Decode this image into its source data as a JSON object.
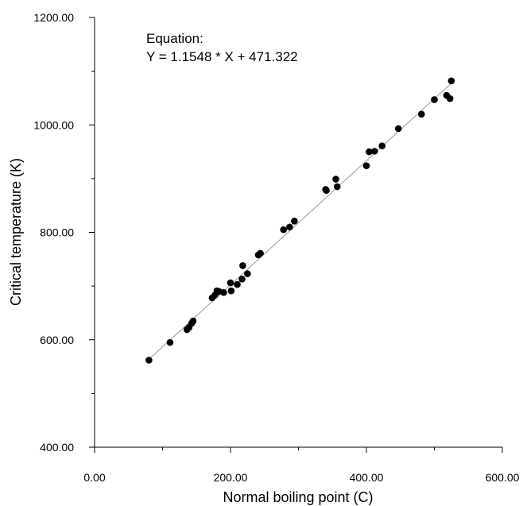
{
  "chart_data": {
    "type": "scatter",
    "title": "",
    "xlabel": "Normal boiling point (C)",
    "ylabel": "Critical temperature (K)",
    "xlim": [
      0,
      600
    ],
    "ylim": [
      400,
      1200
    ],
    "x_ticks": [
      "0.00",
      "200.00",
      "400.00",
      "600.00"
    ],
    "y_ticks": [
      "400.00",
      "600.00",
      "800.00",
      "1000.00",
      "1200.00"
    ],
    "grid": false,
    "annotation": {
      "line1": "Equation:",
      "line2": "Y = 1.1548 * X + 471.322"
    },
    "fit_line": {
      "slope": 1.1548,
      "intercept": 471.322,
      "x_range": [
        80,
        525
      ]
    },
    "points": [
      [
        80,
        562
      ],
      [
        111,
        595
      ],
      [
        136,
        619
      ],
      [
        139,
        623
      ],
      [
        143,
        631
      ],
      [
        145,
        635
      ],
      [
        173,
        678
      ],
      [
        177,
        683
      ],
      [
        180,
        691
      ],
      [
        183,
        690
      ],
      [
        190,
        688
      ],
      [
        200,
        706
      ],
      [
        201,
        691
      ],
      [
        210,
        703
      ],
      [
        217,
        713
      ],
      [
        218,
        738
      ],
      [
        225,
        723
      ],
      [
        241,
        758
      ],
      [
        244,
        761
      ],
      [
        278,
        805
      ],
      [
        287,
        810
      ],
      [
        294,
        821
      ],
      [
        340,
        880
      ],
      [
        341,
        878
      ],
      [
        355,
        899
      ],
      [
        357,
        885
      ],
      [
        400,
        924
      ],
      [
        404,
        950
      ],
      [
        412,
        951
      ],
      [
        423,
        961
      ],
      [
        447,
        993
      ],
      [
        481,
        1020
      ],
      [
        500,
        1047
      ],
      [
        518,
        1055
      ],
      [
        523,
        1049
      ],
      [
        525,
        1082
      ]
    ]
  }
}
